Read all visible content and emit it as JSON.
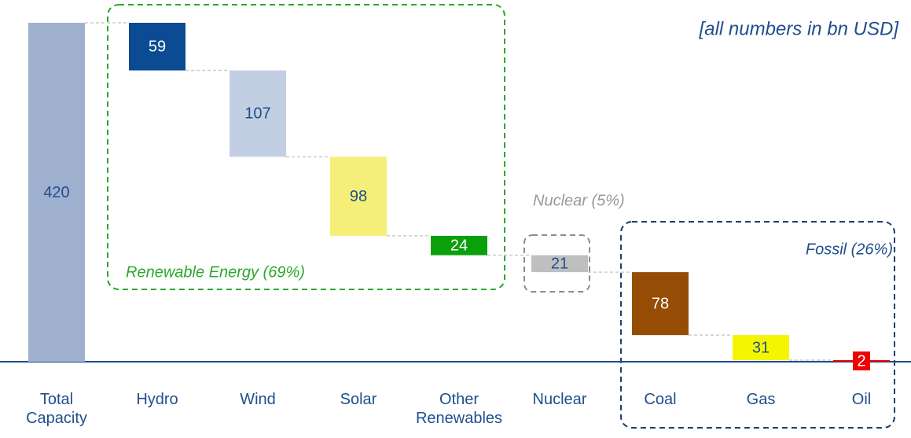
{
  "chart_data": {
    "type": "waterfall",
    "categories": [
      "Total Capacity",
      "Hydro",
      "Wind",
      "Solar",
      "Other Renewables",
      "Nuclear",
      "Coal",
      "Gas",
      "Oil"
    ],
    "values": [
      420,
      59,
      107,
      98,
      24,
      21,
      78,
      31,
      2
    ],
    "colors": [
      "#9fb1cf",
      "#0b4b93",
      "#c2cfe3",
      "#f5ef7a",
      "#0aa00a",
      "#bfbfbf",
      "#954c05",
      "#f5f500",
      "#f00000"
    ],
    "label_colors": [
      "#1f4e8c",
      "#ffffff",
      "#1f4e8c",
      "#1f4e8c",
      "#ffffff",
      "#1f4e8c",
      "#ffffff",
      "#1f4e8c",
      "#ffffff"
    ],
    "annotations": [
      "[all numbers in bn USD]",
      "Renewable Energy (69%)",
      "Nuclear (5%)",
      "Fossil (26%)"
    ]
  }
}
